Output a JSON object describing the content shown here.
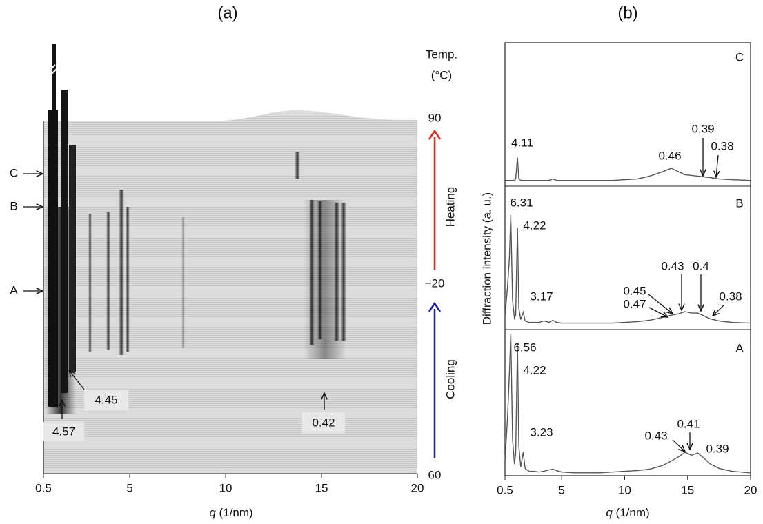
{
  "chart_data": [
    {
      "type": "waterfall",
      "title": "(a)",
      "xlabel": [
        "q",
        "(1/nm)"
      ],
      "xlim": [
        0.5,
        20
      ],
      "xticks": [
        0.5,
        5,
        10,
        15,
        20
      ],
      "temp_label": [
        "Temp.",
        "(°C)"
      ],
      "temp_markers": [
        90,
        {
          "value": -20,
          "label": "−20"
        },
        60
      ],
      "segments": [
        "Heating",
        "Cooling"
      ],
      "segment_colors": [
        "#e8251f",
        "#1c1ca8"
      ],
      "scan_labels": [
        "C",
        "B",
        "A"
      ],
      "peak_labels": [
        4.57,
        4.45,
        0.42
      ]
    },
    {
      "type": "line",
      "title": "(b)",
      "xlabel": [
        "q",
        "(1/nm)"
      ],
      "ylabel": "Diffraction intensity (a. u.)",
      "xlim": [
        0.5,
        20
      ],
      "xticks": [
        0.5,
        5,
        10,
        15,
        20
      ],
      "ylim": [
        0,
        1
      ],
      "x": [
        0.5,
        0.7,
        0.85,
        0.96,
        1.1,
        1.25,
        1.35,
        1.49,
        1.6,
        1.75,
        1.95,
        2.1,
        2.4,
        2.8,
        3.2,
        3.6,
        4.0,
        4.3,
        4.6,
        5.0,
        6,
        7,
        8,
        9,
        10,
        11,
        12,
        13,
        13.7,
        14.3,
        14.8,
        15.3,
        15.8,
        16.3,
        16.8,
        17.5,
        18.5,
        20
      ],
      "series": [
        {
          "name": "C",
          "color": "#555555",
          "values": [
            0.04,
            0.04,
            0.04,
            0.04,
            0.04,
            0.04,
            0.05,
            0.2,
            0.05,
            0.04,
            0.04,
            0.04,
            0.04,
            0.04,
            0.04,
            0.04,
            0.04,
            0.05,
            0.04,
            0.04,
            0.04,
            0.04,
            0.04,
            0.04,
            0.045,
            0.05,
            0.07,
            0.1,
            0.125,
            0.1,
            0.08,
            0.075,
            0.07,
            0.065,
            0.06,
            0.05,
            0.045,
            0.04
          ],
          "peak_labels": [
            4.11,
            0.46,
            0.39,
            0.38
          ]
        },
        {
          "name": "B",
          "color": "#555555",
          "values": [
            0.09,
            0.3,
            0.5,
            0.8,
            0.2,
            0.08,
            0.1,
            0.71,
            0.15,
            0.07,
            0.12,
            0.06,
            0.05,
            0.05,
            0.05,
            0.06,
            0.05,
            0.065,
            0.05,
            0.045,
            0.045,
            0.045,
            0.045,
            0.045,
            0.05,
            0.055,
            0.065,
            0.085,
            0.1,
            0.11,
            0.125,
            0.115,
            0.115,
            0.095,
            0.075,
            0.06,
            0.05,
            0.045
          ],
          "peak_labels": [
            6.31,
            4.22,
            3.17,
            0.45,
            0.47,
            0.43,
            0.4,
            0.38
          ]
        },
        {
          "name": "A",
          "color": "#555555",
          "values": [
            0.1,
            0.4,
            0.7,
            0.97,
            0.25,
            0.08,
            0.15,
            0.9,
            0.2,
            0.06,
            0.16,
            0.05,
            0.03,
            0.03,
            0.025,
            0.03,
            0.04,
            0.045,
            0.035,
            0.025,
            0.02,
            0.02,
            0.02,
            0.025,
            0.03,
            0.035,
            0.045,
            0.07,
            0.1,
            0.13,
            0.16,
            0.14,
            0.155,
            0.12,
            0.08,
            0.05,
            0.03,
            0.02
          ],
          "peak_labels": [
            6.56,
            4.22,
            3.23,
            0.43,
            0.41,
            0.39
          ]
        }
      ]
    }
  ]
}
